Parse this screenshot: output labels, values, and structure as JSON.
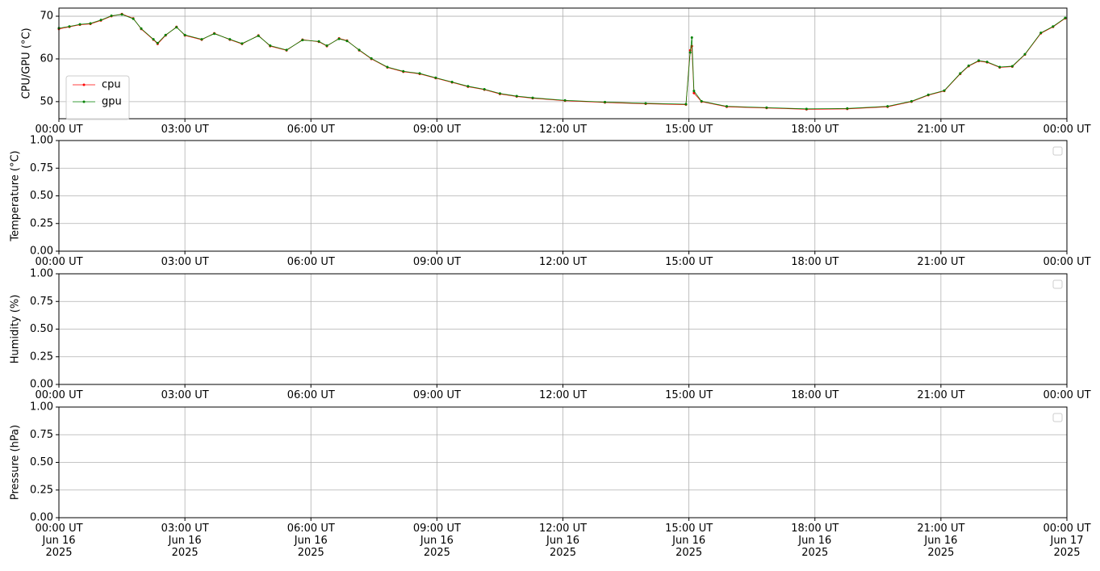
{
  "chart_data": [
    {
      "type": "line",
      "ylabel": "CPU/GPU (°C)",
      "x": [
        0,
        0.25,
        0.5,
        0.75,
        1,
        1.25,
        1.5,
        1.77,
        1.96,
        2.25,
        2.35,
        2.54,
        2.8,
        3,
        3.4,
        3.7,
        4.07,
        4.36,
        4.75,
        5.03,
        5.42,
        5.8,
        6.19,
        6.38,
        6.67,
        6.86,
        7.15,
        7.44,
        7.82,
        8.2,
        8.59,
        8.97,
        9.36,
        9.74,
        10.13,
        10.5,
        10.9,
        11.28,
        12.05,
        13,
        13.97,
        14.93,
        15.03,
        15.07,
        15.12,
        15.3,
        15.9,
        16.85,
        17.8,
        18.77,
        19.73,
        20.3,
        20.7,
        21.08,
        21.46,
        21.66,
        21.9,
        22.1,
        22.4,
        22.7,
        23,
        23.38,
        23.67,
        23.96
      ],
      "series": [
        {
          "name": "cpu",
          "color": "#ff0000",
          "values": [
            67,
            67.5,
            68,
            68.2,
            69,
            70,
            70.5,
            69.5,
            67,
            64.5,
            63.5,
            65.5,
            67.5,
            65.5,
            64.5,
            66,
            64.5,
            63.5,
            65.5,
            63,
            62,
            64.5,
            64,
            63,
            64.8,
            64.3,
            62,
            60,
            58,
            57,
            56.5,
            55.5,
            54.5,
            53.5,
            52.8,
            51.8,
            51.2,
            50.8,
            50.2,
            49.8,
            49.5,
            49.3,
            62,
            63,
            52,
            50,
            48.8,
            48.5,
            48.2,
            48.3,
            48.8,
            50,
            51.5,
            52.5,
            56.5,
            58.3,
            59.5,
            59.2,
            58,
            58.2,
            61,
            66,
            67.5,
            69.5
          ]
        },
        {
          "name": "gpu",
          "color": "#008000",
          "values": [
            67.2,
            67.6,
            68.1,
            68.3,
            69.1,
            70.1,
            70.4,
            69.4,
            67.1,
            64.6,
            63.7,
            65.6,
            67.4,
            65.6,
            64.6,
            65.9,
            64.6,
            63.6,
            65.4,
            63.1,
            62.1,
            64.4,
            64.1,
            63.1,
            64.7,
            64.2,
            62.1,
            60.1,
            58.1,
            57.1,
            56.6,
            55.6,
            54.6,
            53.6,
            52.9,
            51.9,
            51.3,
            50.9,
            50.3,
            49.9,
            49.6,
            49.4,
            61.5,
            65,
            52.5,
            50.1,
            48.9,
            48.6,
            48.3,
            48.4,
            48.9,
            50.1,
            51.6,
            52.6,
            56.6,
            58.4,
            59.6,
            59.3,
            58.1,
            58.3,
            61.1,
            66.1,
            67.6,
            69.6
          ]
        }
      ],
      "xlim": [
        0,
        24
      ],
      "xticks": [
        {
          "value": 0,
          "label": "00:00 UT"
        },
        {
          "value": 3,
          "label": "03:00 UT"
        },
        {
          "value": 6,
          "label": "06:00 UT"
        },
        {
          "value": 9,
          "label": "09:00 UT"
        },
        {
          "value": 12,
          "label": "12:00 UT"
        },
        {
          "value": 15,
          "label": "15:00 UT"
        },
        {
          "value": 18,
          "label": "18:00 UT"
        },
        {
          "value": 21,
          "label": "21:00 UT"
        },
        {
          "value": 24,
          "label": "00:00 UT"
        }
      ],
      "ylim": [
        46,
        71.9
      ],
      "yticks": [
        50,
        60,
        70
      ],
      "grid": true,
      "legend": "upper left"
    },
    {
      "type": "line",
      "ylabel": "Temperature (°C)",
      "series": [],
      "xlim": [
        0,
        24
      ],
      "xticks": [
        {
          "value": 0,
          "label": "00:00 UT"
        },
        {
          "value": 3,
          "label": "03:00 UT"
        },
        {
          "value": 6,
          "label": "06:00 UT"
        },
        {
          "value": 9,
          "label": "09:00 UT"
        },
        {
          "value": 12,
          "label": "12:00 UT"
        },
        {
          "value": 15,
          "label": "15:00 UT"
        },
        {
          "value": 18,
          "label": "18:00 UT"
        },
        {
          "value": 21,
          "label": "21:00 UT"
        },
        {
          "value": 24,
          "label": "00:00 UT"
        }
      ],
      "ylim": [
        0,
        1
      ],
      "yticks": [
        {
          "value": 0,
          "label": "0.00"
        },
        {
          "value": 0.25,
          "label": "0.25"
        },
        {
          "value": 0.5,
          "label": "0.50"
        },
        {
          "value": 0.75,
          "label": "0.75"
        },
        {
          "value": 1,
          "label": "1.00"
        }
      ],
      "grid": true,
      "legend": "upper right"
    },
    {
      "type": "line",
      "ylabel": "Humidity (%)",
      "series": [],
      "xlim": [
        0,
        24
      ],
      "xticks": [
        {
          "value": 0,
          "label": "00:00 UT"
        },
        {
          "value": 3,
          "label": "03:00 UT"
        },
        {
          "value": 6,
          "label": "06:00 UT"
        },
        {
          "value": 9,
          "label": "09:00 UT"
        },
        {
          "value": 12,
          "label": "12:00 UT"
        },
        {
          "value": 15,
          "label": "15:00 UT"
        },
        {
          "value": 18,
          "label": "18:00 UT"
        },
        {
          "value": 21,
          "label": "21:00 UT"
        },
        {
          "value": 24,
          "label": "00:00 UT"
        }
      ],
      "ylim": [
        0,
        1
      ],
      "yticks": [
        {
          "value": 0,
          "label": "0.00"
        },
        {
          "value": 0.25,
          "label": "0.25"
        },
        {
          "value": 0.5,
          "label": "0.50"
        },
        {
          "value": 0.75,
          "label": "0.75"
        },
        {
          "value": 1,
          "label": "1.00"
        }
      ],
      "grid": true,
      "legend": "upper right"
    },
    {
      "type": "line",
      "ylabel": "Pressure (hPa)",
      "series": [],
      "xlim": [
        0,
        24
      ],
      "xticks": [
        {
          "value": 0,
          "label": "00:00 UT\nJun 16\n2025"
        },
        {
          "value": 3,
          "label": "03:00 UT\nJun 16\n2025"
        },
        {
          "value": 6,
          "label": "06:00 UT\nJun 16\n2025"
        },
        {
          "value": 9,
          "label": "09:00 UT\nJun 16\n2025"
        },
        {
          "value": 12,
          "label": "12:00 UT\nJun 16\n2025"
        },
        {
          "value": 15,
          "label": "15:00 UT\nJun 16\n2025"
        },
        {
          "value": 18,
          "label": "18:00 UT\nJun 16\n2025"
        },
        {
          "value": 21,
          "label": "21:00 UT\nJun 16\n2025"
        },
        {
          "value": 24,
          "label": "00:00 UT\nJun 17\n2025"
        }
      ],
      "ylim": [
        0,
        1
      ],
      "yticks": [
        {
          "value": 0,
          "label": "0.00"
        },
        {
          "value": 0.25,
          "label": "0.25"
        },
        {
          "value": 0.5,
          "label": "0.50"
        },
        {
          "value": 0.75,
          "label": "0.75"
        },
        {
          "value": 1,
          "label": "1.00"
        }
      ],
      "grid": true,
      "legend": "upper right"
    }
  ]
}
